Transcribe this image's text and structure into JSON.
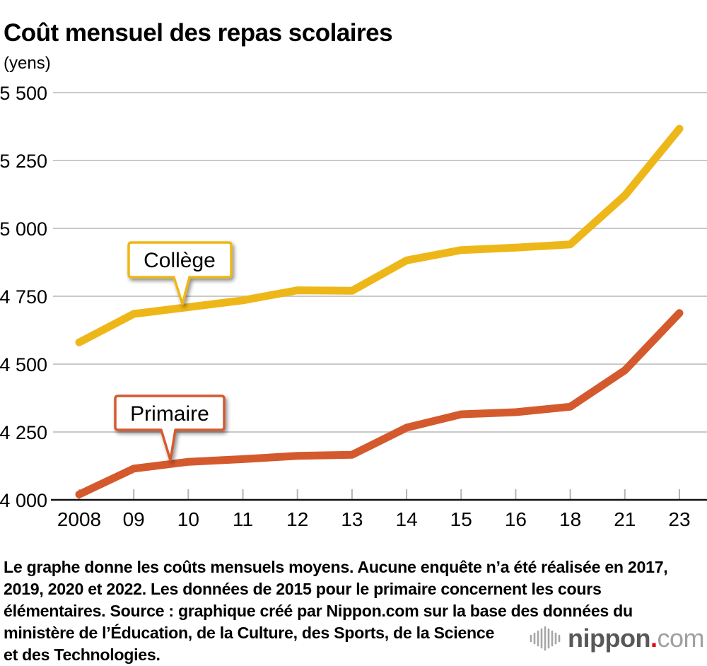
{
  "page": {
    "title": "Coût mensuel des repas scolaires",
    "axis_unit_label": "(yens)"
  },
  "chart_data": {
    "type": "line",
    "title": "Coût mensuel des repas scolaires",
    "ylabel": "(yens)",
    "categories": [
      "2008",
      "09",
      "10",
      "11",
      "12",
      "13",
      "14",
      "15",
      "16",
      "18",
      "21",
      "23"
    ],
    "series": [
      {
        "name": "Collège",
        "color": "#EEB719",
        "values": [
          4580,
          4685,
          4710,
          4735,
          4772,
          4770,
          4882,
          4920,
          4929,
          4941,
          5121,
          5367
        ]
      },
      {
        "name": "Primaire",
        "color": "#D45A2E",
        "values": [
          4020,
          4115,
          4140,
          4150,
          4162,
          4166,
          4266,
          4315,
          4323,
          4343,
          4477,
          4688
        ]
      }
    ],
    "ylim": [
      4000,
      5500
    ],
    "yticks": [
      {
        "value": 4000,
        "label": "4 000"
      },
      {
        "value": 4250,
        "label": "4 250"
      },
      {
        "value": 4500,
        "label": "4 500"
      },
      {
        "value": 4750,
        "label": "4 750"
      },
      {
        "value": 5000,
        "label": "5 000"
      },
      {
        "value": 5250,
        "label": "5 250"
      },
      {
        "value": 5500,
        "label": "5 500"
      }
    ],
    "grid": true,
    "legend_position": "callout labels attached to lines"
  },
  "callouts": {
    "college": "Collège",
    "primaire": "Primaire"
  },
  "footer": {
    "note": "Le graphe donne les coûts mensuels moyens. Aucune enquête n’a été réalisée en 2017,\n2019, 2020 et 2022. Les données de 2015 pour le primaire concernent les cours\nélémentaires. Source : graphique créé par Nippon.com sur la base des données du\nministère de l’Éducation, de la Culture, des Sports, de la Science\net des Technologies.",
    "logo": {
      "brand": "nippon",
      "dot": ".",
      "suffix": "com",
      "brand_color": "#595757",
      "dot_color": "#E60012",
      "suffix_color": "#9FA0A0",
      "icon_color": "#A5A6A6",
      "icon": "audio-bars-icon"
    }
  }
}
